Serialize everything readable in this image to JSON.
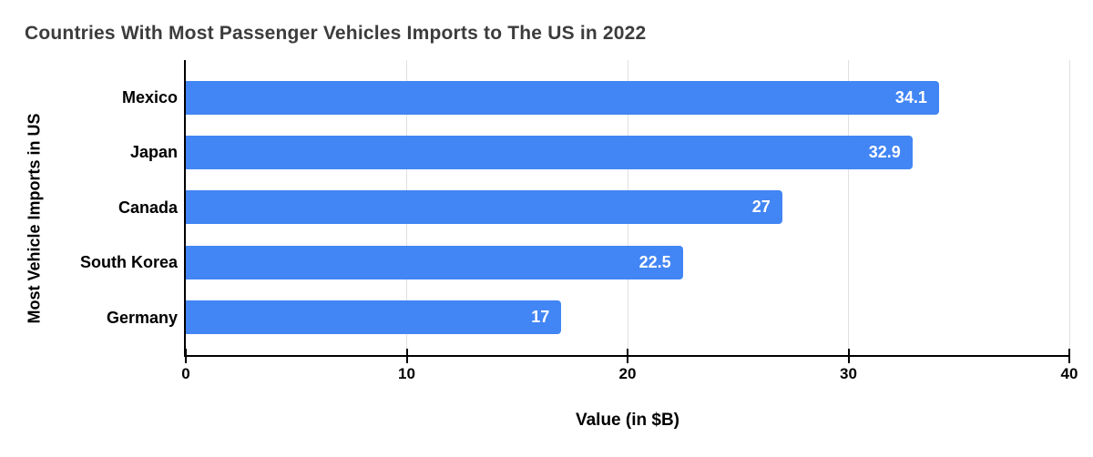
{
  "chart_data": {
    "type": "bar",
    "orientation": "horizontal",
    "title": "Countries With Most Passenger Vehicles Imports to The US in 2022",
    "xlabel": "Value (in $B)",
    "ylabel": "Most Vehicle Imports in US",
    "categories": [
      "Mexico",
      "Japan",
      "Canada",
      "South Korea",
      "Germany"
    ],
    "values": [
      34.1,
      32.9,
      27,
      22.5,
      17
    ],
    "value_labels": [
      "34.1",
      "32.9",
      "27",
      "22.5",
      "17"
    ],
    "xlim": [
      0,
      40
    ],
    "x_ticks": [
      0,
      10,
      20,
      30,
      40
    ],
    "grid": true,
    "legend": false,
    "colors": {
      "bar": "#4285F4",
      "grid": "#e0e0e0",
      "axis": "#000000",
      "title": "#3c3c3c",
      "value_label": "#ffffff"
    }
  }
}
